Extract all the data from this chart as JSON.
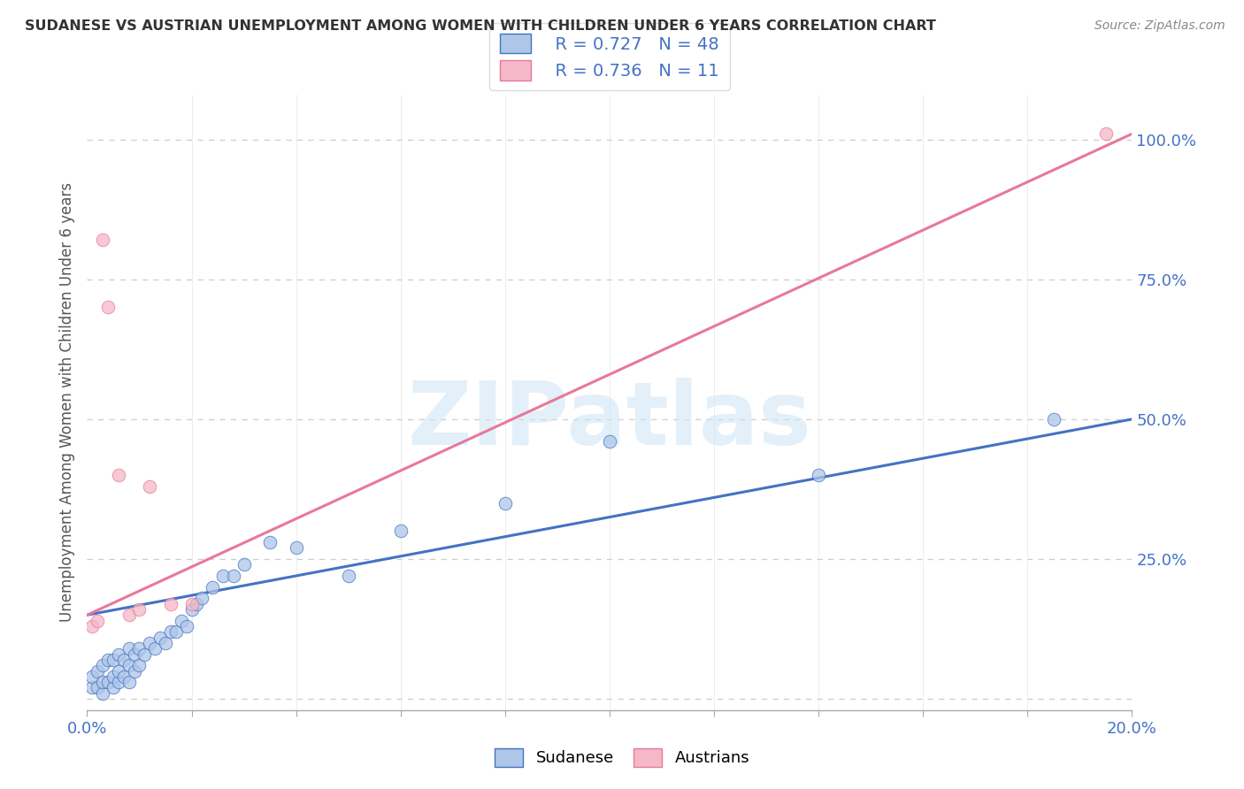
{
  "title": "SUDANESE VS AUSTRIAN UNEMPLOYMENT AMONG WOMEN WITH CHILDREN UNDER 6 YEARS CORRELATION CHART",
  "source": "Source: ZipAtlas.com",
  "ylabel": "Unemployment Among Women with Children Under 6 years",
  "xlim": [
    0.0,
    0.2
  ],
  "ylim": [
    -0.02,
    1.08
  ],
  "yticks": [
    0.0,
    0.25,
    0.5,
    0.75,
    1.0
  ],
  "ytick_labels": [
    "",
    "25.0%",
    "50.0%",
    "75.0%",
    "100.0%"
  ],
  "legend_R_sudanese": "R = 0.727",
  "legend_N_sudanese": "N = 48",
  "legend_R_austrians": "R = 0.736",
  "legend_N_austrians": "N = 11",
  "sudanese_color": "#aec6e8",
  "austrians_color": "#f5b8c8",
  "sudanese_line_color": "#4472c4",
  "austrians_line_color": "#e8789a",
  "sudanese_line": [
    0.0,
    0.2,
    0.15,
    0.5
  ],
  "austrians_line": [
    0.0,
    0.2,
    0.15,
    1.01
  ],
  "sudanese_scatter_x": [
    0.001,
    0.001,
    0.002,
    0.002,
    0.003,
    0.003,
    0.003,
    0.004,
    0.004,
    0.005,
    0.005,
    0.005,
    0.006,
    0.006,
    0.006,
    0.007,
    0.007,
    0.008,
    0.008,
    0.008,
    0.009,
    0.009,
    0.01,
    0.01,
    0.011,
    0.012,
    0.013,
    0.014,
    0.015,
    0.016,
    0.017,
    0.018,
    0.019,
    0.02,
    0.021,
    0.022,
    0.024,
    0.026,
    0.028,
    0.03,
    0.035,
    0.04,
    0.05,
    0.06,
    0.08,
    0.1,
    0.14,
    0.185
  ],
  "sudanese_scatter_y": [
    0.02,
    0.04,
    0.02,
    0.05,
    0.01,
    0.03,
    0.06,
    0.03,
    0.07,
    0.02,
    0.04,
    0.07,
    0.03,
    0.05,
    0.08,
    0.04,
    0.07,
    0.03,
    0.06,
    0.09,
    0.05,
    0.08,
    0.06,
    0.09,
    0.08,
    0.1,
    0.09,
    0.11,
    0.1,
    0.12,
    0.12,
    0.14,
    0.13,
    0.16,
    0.17,
    0.18,
    0.2,
    0.22,
    0.22,
    0.24,
    0.28,
    0.27,
    0.22,
    0.3,
    0.35,
    0.46,
    0.4,
    0.5
  ],
  "austrians_scatter_x": [
    0.001,
    0.002,
    0.003,
    0.004,
    0.006,
    0.008,
    0.01,
    0.012,
    0.016,
    0.02,
    0.195
  ],
  "austrians_scatter_y": [
    0.13,
    0.14,
    0.82,
    0.7,
    0.4,
    0.15,
    0.16,
    0.38,
    0.17,
    0.17,
    1.01
  ],
  "watermark_text": "ZIPatlas",
  "background_color": "#ffffff",
  "grid_color": "#cccccc",
  "tick_color": "#4472c4",
  "title_color": "#333333",
  "source_color": "#888888"
}
